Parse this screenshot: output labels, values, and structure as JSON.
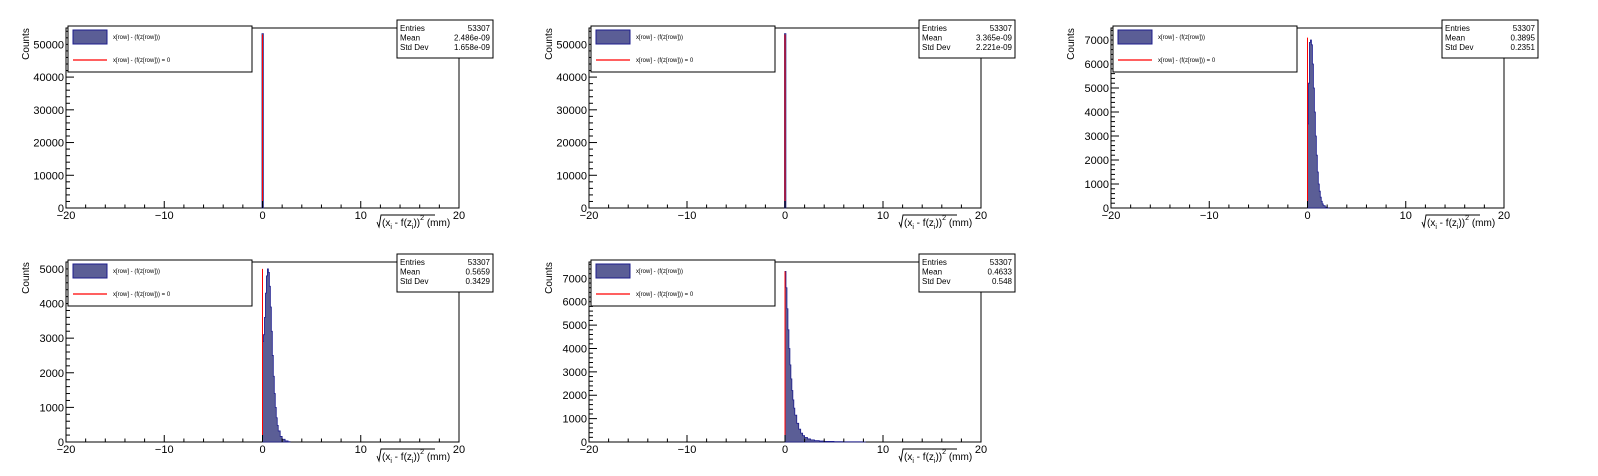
{
  "chart_data": [
    {
      "type": "histogram",
      "ylabel": "Counts",
      "xlim": [
        -20,
        20
      ],
      "ylim": [
        0,
        55000
      ],
      "xticks": [
        -20,
        -10,
        0,
        10,
        20
      ],
      "yticks": [
        0,
        10000,
        20000,
        30000,
        40000,
        50000
      ],
      "legend": {
        "placement": "top-left",
        "entries": [
          {
            "label": "x[row] - (f(z[row]))",
            "color": "#5b5e96",
            "kind": "fill"
          },
          {
            "label": "x[row] - (f(z[row])) = 0",
            "color": "#ff0000",
            "kind": "line"
          }
        ]
      },
      "stats": {
        "entries": "53307",
        "mean": "2.486e-09",
        "std_dev": "1.658e-09"
      },
      "peak_x": 0,
      "peak_count": 53307,
      "reference_line_x": 0,
      "reference_line_height": 53000,
      "shape": "spike"
    },
    {
      "type": "histogram",
      "ylabel": "Counts",
      "xlim": [
        -20,
        20
      ],
      "ylim": [
        0,
        55000
      ],
      "xticks": [
        -20,
        -10,
        0,
        10,
        20
      ],
      "yticks": [
        0,
        10000,
        20000,
        30000,
        40000,
        50000
      ],
      "legend": {
        "placement": "top-left",
        "entries": [
          {
            "label": "x[row] - (f(z[row]))",
            "color": "#5b5e96",
            "kind": "fill"
          },
          {
            "label": "x[row] - (f(z[row])) = 0",
            "color": "#ff0000",
            "kind": "line"
          }
        ]
      },
      "stats": {
        "entries": "53307",
        "mean": "3.365e-09",
        "std_dev": "2.221e-09"
      },
      "peak_x": 0,
      "peak_count": 53307,
      "reference_line_x": 0,
      "reference_line_height": 53000,
      "shape": "spike"
    },
    {
      "type": "histogram",
      "ylabel": "Counts",
      "xlim": [
        -20,
        20
      ],
      "ylim": [
        0,
        7500
      ],
      "xticks": [
        -20,
        -10,
        0,
        10,
        20
      ],
      "yticks": [
        0,
        1000,
        2000,
        3000,
        4000,
        5000,
        6000,
        7000
      ],
      "legend": {
        "placement": "top-left",
        "entries": [
          {
            "label": "x[row] - (f(z[row]))",
            "color": "#5b5e96",
            "kind": "fill"
          },
          {
            "label": "x[row] - (f(z[row])) = 0",
            "color": "#ff0000",
            "kind": "line"
          }
        ]
      },
      "stats": {
        "entries": "53307",
        "mean": "0.3895",
        "std_dev": "0.2351"
      },
      "bins_x": [
        0.0,
        0.1,
        0.2,
        0.3,
        0.4,
        0.5,
        0.6,
        0.7,
        0.8,
        0.9,
        1.0,
        1.1,
        1.2,
        1.3,
        1.4,
        1.5,
        1.6,
        1.8,
        2.0
      ],
      "bins_y": [
        3500,
        5200,
        6900,
        7000,
        6800,
        6000,
        5000,
        4000,
        3000,
        2200,
        1500,
        1000,
        700,
        450,
        280,
        170,
        100,
        40,
        10
      ],
      "reference_line_x": 0,
      "reference_line_height": 7100,
      "shape": "bins"
    },
    {
      "type": "histogram",
      "ylabel": "Counts",
      "xlim": [
        -20,
        20
      ],
      "ylim": [
        0,
        5200
      ],
      "xticks": [
        -20,
        -10,
        0,
        10,
        20
      ],
      "yticks": [
        0,
        1000,
        2000,
        3000,
        4000,
        5000
      ],
      "legend": {
        "placement": "top-left",
        "entries": [
          {
            "label": "x[row] - (f(z[row]))",
            "color": "#5b5e96",
            "kind": "fill"
          },
          {
            "label": "x[row] - (f(z[row])) = 0",
            "color": "#ff0000",
            "kind": "line"
          }
        ]
      },
      "stats": {
        "entries": "53307",
        "mean": "0.5659",
        "std_dev": "0.3429"
      },
      "bins_x": [
        0.0,
        0.1,
        0.2,
        0.3,
        0.4,
        0.5,
        0.6,
        0.7,
        0.8,
        0.9,
        1.0,
        1.1,
        1.2,
        1.3,
        1.4,
        1.5,
        1.6,
        1.8,
        2.0,
        2.3,
        2.6
      ],
      "bins_y": [
        2900,
        3100,
        3600,
        4300,
        4800,
        5000,
        4900,
        4500,
        3900,
        3200,
        2500,
        1900,
        1400,
        1000,
        700,
        480,
        320,
        160,
        80,
        30,
        10
      ],
      "reference_line_x": 0,
      "reference_line_height": 5000,
      "shape": "bins"
    },
    {
      "type": "histogram",
      "ylabel": "Counts",
      "xlim": [
        -20,
        20
      ],
      "ylim": [
        0,
        7700
      ],
      "xticks": [
        -20,
        -10,
        0,
        10,
        20
      ],
      "yticks": [
        0,
        1000,
        2000,
        3000,
        4000,
        5000,
        6000,
        7000
      ],
      "legend": {
        "placement": "top-left",
        "entries": [
          {
            "label": "x[row] - (f(z[row]))",
            "color": "#5b5e96",
            "kind": "fill"
          },
          {
            "label": "x[row] - (f(z[row])) = 0",
            "color": "#ff0000",
            "kind": "line"
          }
        ]
      },
      "stats": {
        "entries": "53307",
        "mean": "0.4633",
        "std_dev": "0.548"
      },
      "bins_x": [
        0.0,
        0.1,
        0.2,
        0.3,
        0.4,
        0.5,
        0.6,
        0.7,
        0.8,
        0.9,
        1.0,
        1.2,
        1.4,
        1.6,
        1.8,
        2.0,
        2.3,
        2.6,
        3.0,
        3.5,
        4.0,
        5.0,
        6.0,
        8.0
      ],
      "bins_y": [
        7300,
        6600,
        5700,
        4800,
        4000,
        3300,
        2700,
        2200,
        1800,
        1450,
        1150,
        800,
        550,
        380,
        270,
        190,
        130,
        90,
        60,
        40,
        25,
        15,
        8,
        3
      ],
      "reference_line_x": 0,
      "reference_line_height": 7300,
      "shape": "bins"
    }
  ],
  "labels": {
    "stat_entries": "Entries",
    "stat_mean": "Mean",
    "stat_std": "Std Dev",
    "xlabel_prefix": "(x",
    "xlabel_sub_i": "i",
    "xlabel_mid": " - f(z",
    "xlabel_sub_i2": "i",
    "xlabel_close": "))",
    "xlabel_sup": "2",
    "xlabel_unit": " (mm)"
  }
}
